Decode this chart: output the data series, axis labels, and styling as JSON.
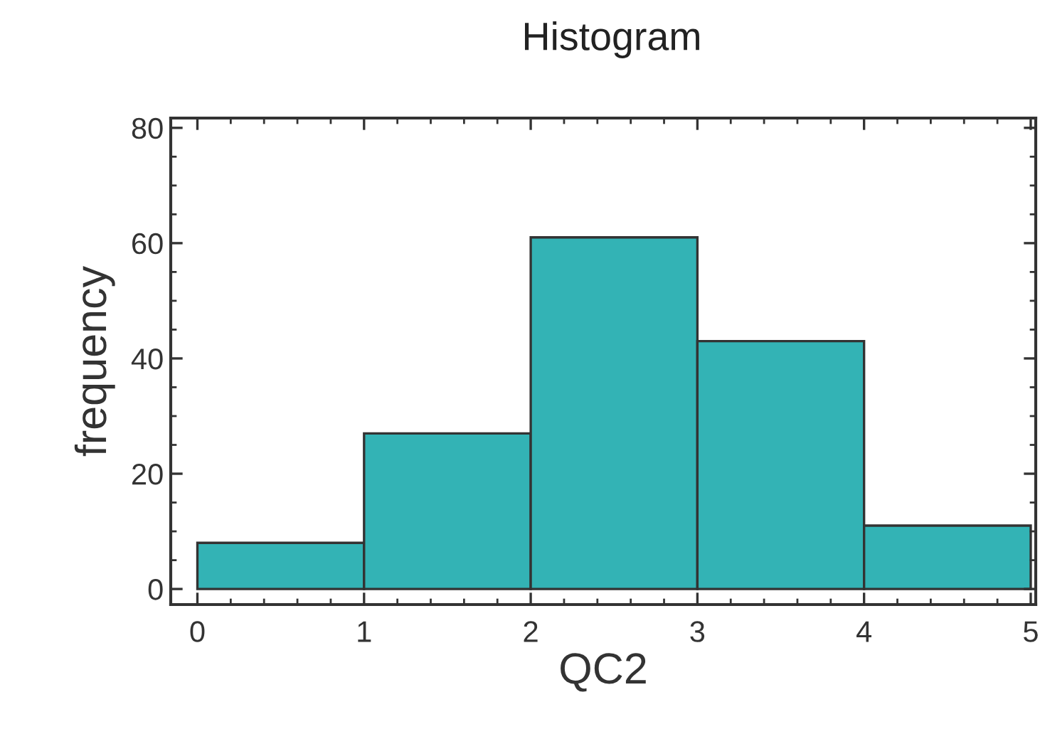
{
  "chart_data": {
    "type": "histogram",
    "title": "Histogram",
    "xlabel": "QC2",
    "ylabel": "frequency",
    "bins": [
      0,
      1,
      2,
      3,
      4,
      5
    ],
    "values": [
      8,
      27,
      61,
      43,
      11
    ],
    "color": "#33b3b5",
    "xlim": [
      -0.16,
      5.03
    ],
    "ylim": [
      -2.7,
      81.7
    ],
    "xticks": [
      0,
      1,
      2,
      3,
      4,
      5
    ],
    "yticks": [
      0,
      20,
      40,
      60,
      80
    ],
    "grid": false
  }
}
